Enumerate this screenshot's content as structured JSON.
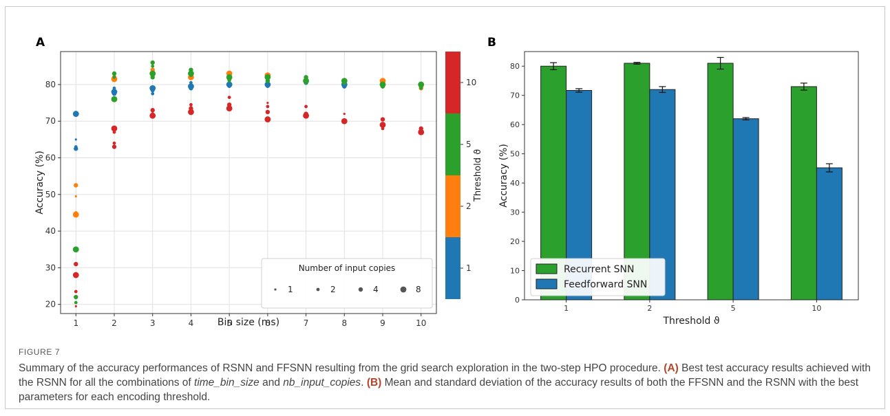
{
  "figure": {
    "caption_label": "FIGURE 7",
    "caption": {
      "intro": "Summary of the accuracy performances of RSNN and FFSNN resulting from the grid search exploration in the two-step HPO procedure. ",
      "a_tag": "(A)",
      "a_text_1": " Best test accuracy results achieved with the RSNN for all the combinations of ",
      "a_term_1": "time_bin_size",
      "a_and": " and ",
      "a_term_2": "nb_input_copies",
      "a_end": ". ",
      "b_tag": "(B)",
      "b_text": " Mean and standard deviation of the accuracy results of both the FFSNN and the RSNN with the best parameters for each encoding threshold."
    }
  },
  "colors": {
    "threshold_1": "#1f77b4",
    "threshold_2": "#ff7f0e",
    "threshold_5": "#2ca02c",
    "threshold_10": "#d62728"
  },
  "chart_data": [
    {
      "panel": "A",
      "type": "scatter",
      "xlabel": "Bin size (ms)",
      "ylabel": "Accuracy (%)",
      "xlim": [
        0.6,
        10.4
      ],
      "ylim": [
        17.5,
        89
      ],
      "xticks": [
        1,
        2,
        3,
        4,
        5,
        6,
        7,
        8,
        9,
        10
      ],
      "yticks": [
        20,
        30,
        40,
        50,
        60,
        70,
        80
      ],
      "grid": true,
      "legend": {
        "title": "Number of input copies",
        "placement": "lower-right",
        "sizes": [
          1,
          2,
          4,
          8
        ]
      },
      "colorbar": {
        "label": "Threshold ϑ",
        "tick_labels": [
          "1",
          "2",
          "5",
          "10"
        ],
        "colors": [
          "#1f77b4",
          "#ff7f0e",
          "#2ca02c",
          "#d62728"
        ]
      },
      "series": [
        {
          "threshold": 1,
          "color": "#1f77b4",
          "points": [
            [
              1,
              72,
              8
            ],
            [
              1,
              65,
              1
            ],
            [
              1,
              63,
              2
            ],
            [
              1,
              62.5,
              4
            ],
            [
              2,
              79,
              2
            ],
            [
              2,
              78,
              8
            ],
            [
              2,
              77.5,
              4
            ],
            [
              3,
              79,
              8
            ],
            [
              3,
              78.5,
              4
            ],
            [
              3,
              77.5,
              2
            ],
            [
              4,
              80.5,
              2
            ],
            [
              4,
              79.5,
              8
            ],
            [
              4,
              79,
              4
            ],
            [
              5,
              80,
              8
            ],
            [
              5,
              79.5,
              2
            ],
            [
              6,
              80,
              8
            ],
            [
              6,
              79.5,
              2
            ],
            [
              7,
              80.5,
              4
            ],
            [
              8,
              80,
              8
            ],
            [
              8,
              79.5,
              4
            ],
            [
              9,
              80,
              2
            ],
            [
              10,
              79,
              2
            ]
          ]
        },
        {
          "threshold": 2,
          "color": "#ff7f0e",
          "points": [
            [
              1,
              52.5,
              4
            ],
            [
              1,
              49.5,
              1
            ],
            [
              1,
              45,
              2
            ],
            [
              1,
              44.5,
              8
            ],
            [
              2,
              82,
              4
            ],
            [
              2,
              81.5,
              8
            ],
            [
              3,
              84,
              4
            ],
            [
              3,
              83,
              8
            ],
            [
              4,
              83,
              4
            ],
            [
              4,
              82,
              8
            ],
            [
              5,
              83,
              8
            ],
            [
              5,
              82,
              4
            ],
            [
              6,
              82.5,
              8
            ],
            [
              6,
              82,
              4
            ],
            [
              7,
              81.5,
              4
            ],
            [
              8,
              81,
              4
            ],
            [
              9,
              81,
              8
            ],
            [
              9,
              80.5,
              4
            ],
            [
              10,
              79,
              4
            ]
          ]
        },
        {
          "threshold": 5,
          "color": "#2ca02c",
          "points": [
            [
              1,
              35,
              8
            ],
            [
              1,
              22,
              4
            ],
            [
              1,
              20.5,
              2
            ],
            [
              2,
              83,
              4
            ],
            [
              2,
              82,
              2
            ],
            [
              2,
              76,
              8
            ],
            [
              3,
              86,
              4
            ],
            [
              3,
              85,
              2
            ],
            [
              3,
              83,
              8
            ],
            [
              3,
              82,
              4
            ],
            [
              4,
              84,
              4
            ],
            [
              4,
              83,
              8
            ],
            [
              4,
              82.5,
              2
            ],
            [
              5,
              82,
              8
            ],
            [
              5,
              81.5,
              4
            ],
            [
              5,
              81,
              2
            ],
            [
              6,
              82,
              8
            ],
            [
              6,
              81,
              4
            ],
            [
              7,
              82,
              4
            ],
            [
              7,
              81,
              8
            ],
            [
              7,
              80.5,
              2
            ],
            [
              8,
              81,
              8
            ],
            [
              8,
              80.5,
              4
            ],
            [
              9,
              80,
              8
            ],
            [
              9,
              79.5,
              4
            ],
            [
              10,
              80,
              8
            ],
            [
              10,
              79.5,
              4
            ],
            [
              10,
              79,
              2
            ]
          ]
        },
        {
          "threshold": 10,
          "color": "#d62728",
          "points": [
            [
              1,
              31,
              4
            ],
            [
              1,
              28,
              8
            ],
            [
              1,
              23.5,
              2
            ],
            [
              1,
              19.5,
              1
            ],
            [
              2,
              68,
              8
            ],
            [
              2,
              67,
              2
            ],
            [
              2,
              64,
              2
            ],
            [
              2,
              63,
              4
            ],
            [
              3,
              73,
              4
            ],
            [
              3,
              72,
              2
            ],
            [
              3,
              71.5,
              8
            ],
            [
              4,
              74.5,
              2
            ],
            [
              4,
              73.5,
              4
            ],
            [
              4,
              72.5,
              8
            ],
            [
              5,
              76.5,
              2
            ],
            [
              5,
              74.5,
              4
            ],
            [
              5,
              73.5,
              8
            ],
            [
              6,
              75,
              1
            ],
            [
              6,
              74,
              2
            ],
            [
              6,
              72.5,
              4
            ],
            [
              6,
              70.5,
              8
            ],
            [
              7,
              74,
              2
            ],
            [
              7,
              72,
              4
            ],
            [
              7,
              71.5,
              8
            ],
            [
              8,
              72,
              1
            ],
            [
              8,
              70,
              8
            ],
            [
              9,
              70.5,
              4
            ],
            [
              9,
              69,
              8
            ],
            [
              9,
              68,
              2
            ],
            [
              10,
              68,
              4
            ],
            [
              10,
              67,
              8
            ]
          ]
        }
      ]
    },
    {
      "panel": "B",
      "type": "bar",
      "categories": [
        "1",
        "2",
        "5",
        "10"
      ],
      "xlabel": "Threshold ϑ",
      "ylabel": "Accuracy (%)",
      "ylim": [
        0,
        85
      ],
      "yticks": [
        0,
        10,
        20,
        30,
        40,
        50,
        60,
        70,
        80
      ],
      "legend": {
        "placement": "lower-left"
      },
      "series": [
        {
          "name": "Recurrent SNN",
          "color": "#2ca02c",
          "values": [
            80,
            81,
            81,
            73
          ],
          "errors": [
            1.2,
            0.3,
            2.0,
            1.2
          ]
        },
        {
          "name": "Feedforward SNN",
          "color": "#1f77b4",
          "values": [
            71.7,
            72,
            62,
            45.2
          ],
          "errors": [
            0.6,
            1.0,
            0.4,
            1.4
          ]
        }
      ]
    }
  ]
}
